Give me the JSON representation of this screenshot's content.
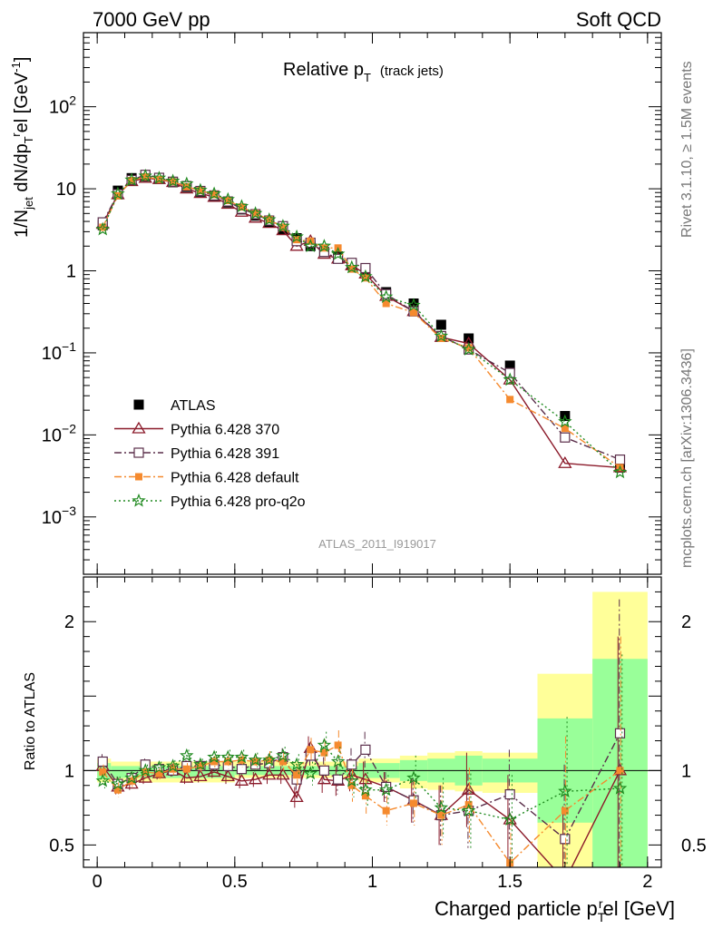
{
  "header": {
    "left": "7000 GeV pp",
    "right": "Soft QCD"
  },
  "side": {
    "rivet": "Rivet 3.1.10, ≥ 1.5M events",
    "source": "mcplots.cern.ch [arXiv:1306.3436]"
  },
  "chart_data": {
    "type": "scatter",
    "title": "Relative p",
    "title_sub": "T",
    "title_note": "(track jets)",
    "analysis": "ATLAS_2011_I919017",
    "ylabel": "1/N",
    "ylabel_sub1": "jet",
    "ylabel_mid": " dN/dp",
    "ylabel_sub2": "T",
    "ylabel_sup": "r",
    "ylabel_tail": "el [GeV",
    "ylabel_sup2": "-1",
    "ylabel_end": "]",
    "ratio_ylabel": "Ratio to ATLAS",
    "xlabel": "Charged particle p",
    "xlabel_sub": "T",
    "xlabel_sup": "r",
    "xlabel_tail": "el [GeV]",
    "xlim": [
      -0.05,
      2.05
    ],
    "ylim_main": [
      0.0002,
      800
    ],
    "ylim_ratio": [
      0.35,
      2.3
    ],
    "yscale_main": "log",
    "legend_position": "bottom-left",
    "x_ticks": [
      "0",
      "0.5",
      "1",
      "1.5",
      "2"
    ],
    "x_tick_values": [
      0,
      0.5,
      1,
      1.5,
      2
    ],
    "main_y_ticks": [
      {
        "v": 100,
        "base": "10",
        "exp": "2"
      },
      {
        "v": 10,
        "base": "10",
        "exp": ""
      },
      {
        "v": 1,
        "base": "1",
        "exp": ""
      },
      {
        "v": 0.1,
        "base": "10",
        "exp": "−1"
      },
      {
        "v": 0.01,
        "base": "10",
        "exp": "−2"
      },
      {
        "v": 0.001,
        "base": "10",
        "exp": "−3"
      }
    ],
    "ratio_y_ticks": [
      "0.5",
      "1",
      "2"
    ],
    "ratio_y_tick_values": [
      0.5,
      1,
      2
    ],
    "x": [
      0.02,
      0.075,
      0.125,
      0.175,
      0.225,
      0.275,
      0.325,
      0.375,
      0.425,
      0.475,
      0.525,
      0.575,
      0.625,
      0.675,
      0.725,
      0.775,
      0.825,
      0.875,
      0.925,
      0.975,
      1.05,
      1.15,
      1.25,
      1.35,
      1.5,
      1.7,
      1.9
    ],
    "bands": [
      {
        "x0": 0.0,
        "x1": 0.05,
        "lo1": 0.94,
        "hi1": 1.05,
        "lo2": 0.92,
        "hi2": 1.08
      },
      {
        "x0": 0.05,
        "x1": 0.5,
        "lo1": 0.95,
        "hi1": 1.03,
        "lo2": 0.92,
        "hi2": 1.06
      },
      {
        "x0": 0.5,
        "x1": 0.95,
        "lo1": 0.97,
        "hi1": 1.03,
        "lo2": 0.95,
        "hi2": 1.06
      },
      {
        "x0": 0.95,
        "x1": 1.1,
        "lo1": 0.95,
        "hi1": 1.05,
        "lo2": 0.92,
        "hi2": 1.08
      },
      {
        "x0": 1.1,
        "x1": 1.2,
        "lo1": 0.93,
        "hi1": 1.07,
        "lo2": 0.88,
        "hi2": 1.1
      },
      {
        "x0": 1.2,
        "x1": 1.3,
        "lo1": 0.92,
        "hi1": 1.08,
        "lo2": 0.87,
        "hi2": 1.12
      },
      {
        "x0": 1.3,
        "x1": 1.4,
        "lo1": 0.9,
        "hi1": 1.1,
        "lo2": 0.86,
        "hi2": 1.13
      },
      {
        "x0": 1.4,
        "x1": 1.6,
        "lo1": 0.92,
        "hi1": 1.08,
        "lo2": 0.85,
        "hi2": 1.12
      },
      {
        "x0": 1.6,
        "x1": 1.8,
        "lo1": 0.65,
        "hi1": 1.35,
        "lo2": 0.35,
        "hi2": 1.65
      },
      {
        "x0": 1.8,
        "x1": 2.0,
        "lo1": 0.35,
        "hi1": 1.75,
        "lo2": 0.35,
        "hi2": 2.2
      }
    ],
    "series": [
      {
        "name": "ATLAS",
        "color": "#000000",
        "marker": "square-filled",
        "dash": "",
        "y": [
          3.6,
          9.5,
          13.5,
          14.2,
          13.2,
          12.0,
          10.5,
          9.2,
          8.0,
          6.8,
          5.6,
          4.7,
          3.9,
          3.2,
          2.5,
          2.0,
          1.7,
          1.5,
          1.2,
          0.98,
          0.55,
          0.4,
          0.22,
          0.15,
          0.07,
          0.017,
          0.004
        ],
        "ratio": [],
        "ratio_err": []
      },
      {
        "name": "Pythia 6.428 370",
        "color": "#8b1a2a",
        "marker": "triangle-open",
        "dash": "",
        "y": [
          3.7,
          8.5,
          12.3,
          13.5,
          13.0,
          12.0,
          10.0,
          8.8,
          7.9,
          6.5,
          5.2,
          4.4,
          3.8,
          3.1,
          2.0,
          2.3,
          1.6,
          1.4,
          1.16,
          0.92,
          0.49,
          0.32,
          0.155,
          0.13,
          0.047,
          0.0045,
          0.004
        ],
        "ratio": [
          1.03,
          0.89,
          0.91,
          0.95,
          0.98,
          1.0,
          0.95,
          0.96,
          0.99,
          0.96,
          0.93,
          0.94,
          0.97,
          0.97,
          0.82,
          1.15,
          0.94,
          0.93,
          0.97,
          0.94,
          0.89,
          0.8,
          0.7,
          0.87,
          0.67,
          0.26,
          1.0
        ],
        "ratio_err": [
          0.05,
          0.05,
          0.04,
          0.04,
          0.04,
          0.04,
          0.04,
          0.04,
          0.04,
          0.05,
          0.05,
          0.05,
          0.06,
          0.06,
          0.07,
          0.08,
          0.09,
          0.1,
          0.11,
          0.12,
          0.1,
          0.15,
          0.2,
          0.25,
          0.3,
          0.5,
          0.9
        ]
      },
      {
        "name": "Pythia 6.428 391",
        "color": "#5a2e4a",
        "marker": "square-open",
        "dash": "8,3,2,3",
        "y": [
          3.9,
          8.6,
          12.8,
          14.8,
          13.6,
          12.2,
          10.8,
          9.4,
          8.3,
          7.0,
          5.7,
          4.9,
          4.1,
          3.5,
          2.3,
          2.2,
          1.7,
          1.4,
          1.25,
          1.08,
          0.52,
          0.32,
          0.16,
          0.11,
          0.057,
          0.0093,
          0.005
        ],
        "ratio": [
          1.06,
          0.91,
          0.95,
          1.04,
          1.01,
          1.0,
          1.03,
          1.03,
          1.04,
          1.03,
          1.01,
          1.04,
          1.05,
          1.09,
          0.94,
          1.1,
          1.0,
          0.94,
          1.04,
          1.14,
          0.89,
          0.8,
          0.7,
          0.73,
          0.84,
          0.54,
          1.25
        ],
        "ratio_err": [
          0.05,
          0.05,
          0.04,
          0.04,
          0.04,
          0.04,
          0.04,
          0.04,
          0.04,
          0.05,
          0.05,
          0.05,
          0.06,
          0.06,
          0.07,
          0.08,
          0.09,
          0.1,
          0.11,
          0.12,
          0.1,
          0.15,
          0.2,
          0.25,
          0.3,
          0.5,
          0.9
        ]
      },
      {
        "name": "Pythia 6.428 default",
        "color": "#f58a2e",
        "marker": "square-small",
        "dash": "8,3,2,3",
        "y": [
          3.4,
          8.2,
          12.6,
          14.0,
          13.0,
          12.2,
          10.6,
          9.5,
          8.5,
          7.2,
          6.0,
          5.0,
          4.2,
          3.4,
          2.4,
          2.3,
          1.9,
          1.9,
          1.05,
          0.82,
          0.4,
          0.31,
          0.15,
          0.115,
          0.027,
          0.012,
          0.004
        ],
        "ratio": [
          0.99,
          0.87,
          0.93,
          0.99,
          0.98,
          1.01,
          1.01,
          1.03,
          1.06,
          1.06,
          1.07,
          1.06,
          1.07,
          1.06,
          0.97,
          1.14,
          1.12,
          1.17,
          0.9,
          0.83,
          0.73,
          0.78,
          0.7,
          0.77,
          0.38,
          0.73,
          1.0
        ],
        "ratio_err": [
          0.05,
          0.05,
          0.04,
          0.04,
          0.04,
          0.04,
          0.04,
          0.04,
          0.04,
          0.05,
          0.05,
          0.05,
          0.06,
          0.06,
          0.07,
          0.08,
          0.09,
          0.1,
          0.11,
          0.12,
          0.1,
          0.15,
          0.2,
          0.25,
          0.3,
          0.5,
          0.9
        ]
      },
      {
        "name": "Pythia 6.428 pro-q2o",
        "color": "#208a20",
        "marker": "star",
        "dash": "2,3",
        "y": [
          3.2,
          8.7,
          12.8,
          14.3,
          13.5,
          12.4,
          11.5,
          9.6,
          8.7,
          7.4,
          6.1,
          5.0,
          4.2,
          3.5,
          2.6,
          2.0,
          2.0,
          1.6,
          1.1,
          0.85,
          0.48,
          0.38,
          0.16,
          0.11,
          0.047,
          0.0145,
          0.0035
        ],
        "ratio": [
          0.93,
          0.91,
          0.95,
          1.0,
          1.02,
          1.03,
          1.1,
          1.04,
          1.09,
          1.09,
          1.09,
          1.07,
          1.07,
          1.1,
          1.04,
          0.98,
          1.17,
          1.06,
          0.93,
          0.87,
          0.87,
          0.95,
          0.75,
          0.73,
          0.67,
          0.86,
          0.88
        ],
        "ratio_err": [
          0.05,
          0.05,
          0.04,
          0.04,
          0.04,
          0.04,
          0.04,
          0.04,
          0.04,
          0.05,
          0.05,
          0.05,
          0.06,
          0.06,
          0.07,
          0.08,
          0.09,
          0.1,
          0.11,
          0.12,
          0.1,
          0.15,
          0.2,
          0.25,
          0.3,
          0.5,
          0.9
        ]
      }
    ]
  }
}
